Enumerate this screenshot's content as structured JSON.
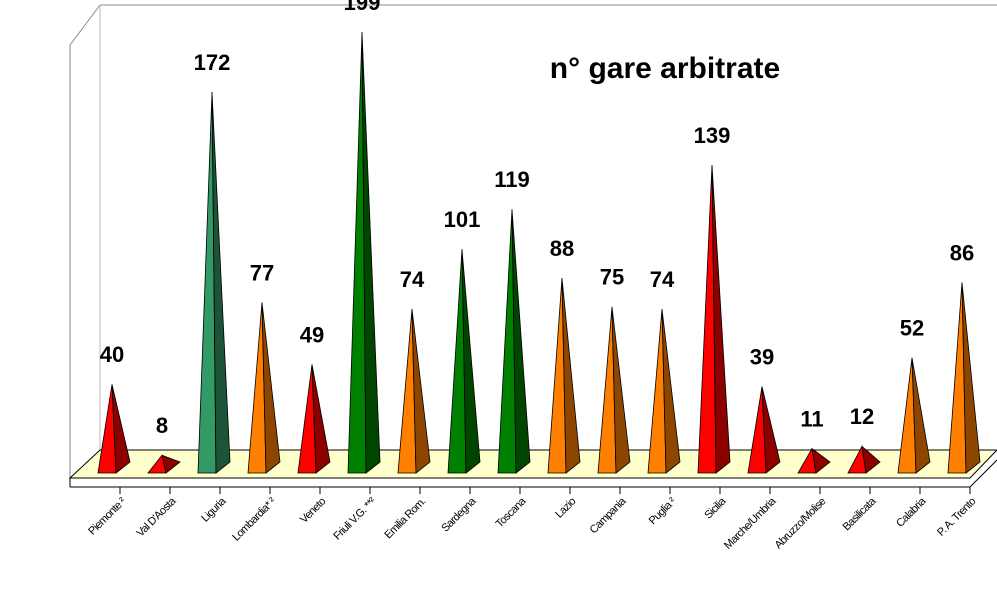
{
  "chart_data": {
    "type": "pyramid3d",
    "title": "n° gare arbitrate",
    "categories": [
      "Piemonte ²",
      "Val D'Aosta",
      "Liguria",
      "Lombardia* ²",
      "Veneto",
      "Friuli V.G. **²",
      "Emilia Rom.",
      "Sardegna",
      "Toscana",
      "Lazio",
      "Campania",
      "Puglia ²",
      "Sicilia",
      "Marche/Umbria",
      "Abruzzo/Molise",
      "Basilicata",
      "Calabria",
      "P. A. Trento"
    ],
    "values": [
      40,
      8,
      172,
      77,
      49,
      199,
      74,
      101,
      119,
      88,
      75,
      74,
      139,
      39,
      11,
      12,
      52,
      86
    ],
    "colors": [
      "#ff0000",
      "#ff0000",
      "#339966",
      "#ff7f00",
      "#ff0000",
      "#008000",
      "#ff7f00",
      "#008000",
      "#008000",
      "#ff7f00",
      "#ff7f00",
      "#ff7f00",
      "#ff0000",
      "#ff0000",
      "#ff0000",
      "#ff0000",
      "#ff7f00",
      "#ff7f00"
    ],
    "ylim": [
      0,
      200
    ]
  }
}
